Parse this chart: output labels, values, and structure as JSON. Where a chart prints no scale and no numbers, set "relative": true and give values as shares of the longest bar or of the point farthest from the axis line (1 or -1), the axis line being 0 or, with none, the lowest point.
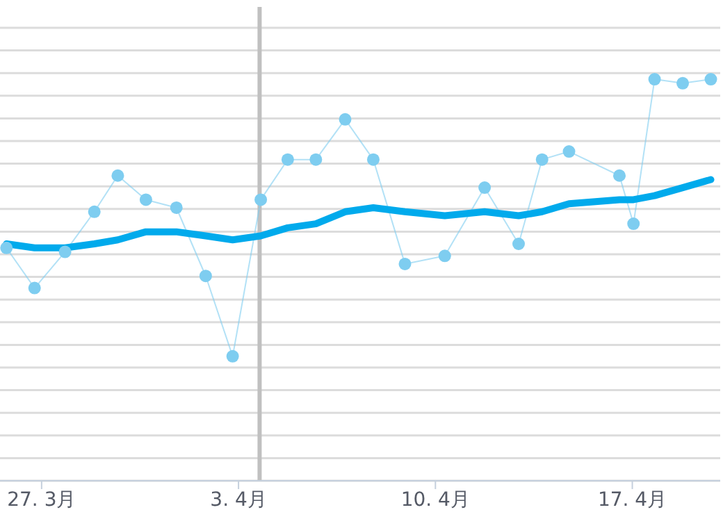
{
  "chart_data": {
    "type": "line",
    "relative": true,
    "grid": "y",
    "xlim": [
      "--03-25T12:30",
      "--04-20T03:00"
    ],
    "xticks": [
      {
        "value": "--03-27",
        "label": "27. 3月"
      },
      {
        "value": "--04-03",
        "label": "3. 4月"
      },
      {
        "value": "--04-10",
        "label": "10. 4月"
      },
      {
        "value": "--04-17",
        "label": "17. 4月"
      }
    ],
    "ref_lines": [
      {
        "axis": "x",
        "value": "--04-03T18:00",
        "color": "#c0c0c0"
      }
    ],
    "series": [
      {
        "color": "#7ecdf0",
        "marker": "circle",
        "x": [
          "--03-25T18:00",
          "--03-26T18:00",
          "--03-27T20:00",
          "--03-28T21:00",
          "--03-29T17:00",
          "--03-30T17:00",
          "--03-31T19:00",
          "--04-01T20:00",
          "--04-02T19:00",
          "--04-03T19:00",
          "--04-04T18:00",
          "--04-05T18:00",
          "--04-06T19:00",
          "--04-07T19:00",
          "--04-08T22:00",
          "--04-10T08:00",
          "--04-11T18:00",
          "--04-12T23:00",
          "--04-13T19:00",
          "--04-14T18:00",
          "--04-16T13:00",
          "--04-17T01:00",
          "--04-17T19:00",
          "--04-18T19:00",
          "--04-19T19:00"
        ],
        "values": [
          0.58,
          0.48,
          0.57,
          0.67,
          0.76,
          0.7,
          0.68,
          0.51,
          0.31,
          0.7,
          0.8,
          0.8,
          0.9,
          0.8,
          0.54,
          0.56,
          0.73,
          0.59,
          0.8,
          0.82,
          0.76,
          0.64,
          1,
          0.99,
          1
        ]
      },
      {
        "color": "#00aaec",
        "marker": "none",
        "x": [
          "--03-25T18:00",
          "--03-26T18:00",
          "--03-27T20:00",
          "--03-28T21:00",
          "--03-29T17:00",
          "--03-30T17:00",
          "--03-31T19:00",
          "--04-01T20:00",
          "--04-02T19:00",
          "--04-03T19:00",
          "--04-04T18:00",
          "--04-05T18:00",
          "--04-06T19:00",
          "--04-07T19:00",
          "--04-08T22:00",
          "--04-10T08:00",
          "--04-11T18:00",
          "--04-12T23:00",
          "--04-13T19:00",
          "--04-14T18:00",
          "--04-16T13:00",
          "--04-17T01:00",
          "--04-17T19:00",
          "--04-18T19:00",
          "--04-19T19:00"
        ],
        "values": [
          0.59,
          0.58,
          0.58,
          0.59,
          0.6,
          0.62,
          0.62,
          0.61,
          0.6,
          0.61,
          0.63,
          0.64,
          0.67,
          0.68,
          0.67,
          0.66,
          0.67,
          0.66,
          0.67,
          0.69,
          0.7,
          0.7,
          0.71,
          0.73,
          0.75
        ]
      }
    ]
  }
}
